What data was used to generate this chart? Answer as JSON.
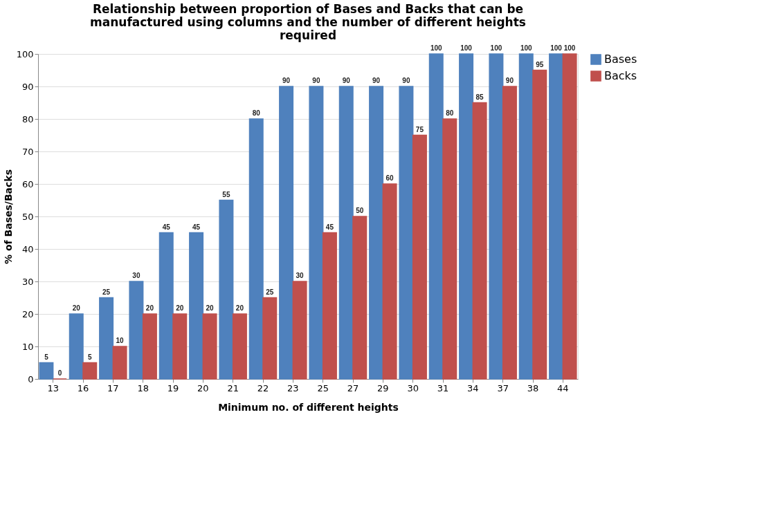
{
  "chart_data": {
    "type": "bar",
    "title": "Relationship between proportion of Bases and Backs that can be manufactured using columns and the number of different heights required",
    "xlabel": "Minimum no. of different heights",
    "ylabel": "% of Bases/Backs",
    "categories": [
      "13",
      "16",
      "17",
      "18",
      "19",
      "20",
      "21",
      "22",
      "23",
      "25",
      "27",
      "29",
      "30",
      "31",
      "34",
      "37",
      "38",
      "44"
    ],
    "series": [
      {
        "name": "Bases",
        "color": "#4f81bd",
        "values": [
          5,
          20,
          25,
          30,
          45,
          45,
          55,
          80,
          90,
          90,
          90,
          90,
          90,
          100,
          100,
          100,
          100,
          100
        ]
      },
      {
        "name": "Backs",
        "color": "#c0504d",
        "values": [
          0,
          5,
          10,
          20,
          20,
          20,
          20,
          25,
          30,
          45,
          50,
          60,
          75,
          80,
          85,
          90,
          95,
          100
        ]
      }
    ],
    "ylim": [
      0,
      100
    ],
    "yticks": [
      0,
      10,
      20,
      30,
      40,
      50,
      60,
      70,
      80,
      90,
      100
    ],
    "grid": "y",
    "legend": "right",
    "data_labels": true
  }
}
